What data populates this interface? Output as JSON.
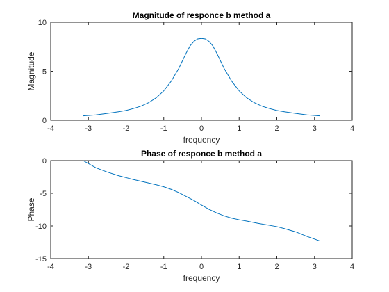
{
  "chart_data": [
    {
      "type": "line",
      "title": "Magnitude of responce b method a",
      "xlabel": "frequency",
      "ylabel": "Magnitude",
      "xlim": [
        -4,
        4
      ],
      "ylim": [
        0,
        10
      ],
      "xticks": [
        "-4",
        "-3",
        "-2",
        "-1",
        "0",
        "1",
        "2",
        "3",
        "4"
      ],
      "yticks": [
        "0",
        "5",
        "10"
      ],
      "color": "#0072BD",
      "grid": false,
      "x": [
        -3.14,
        -2.8,
        -2.5,
        -2.2,
        -2.0,
        -1.8,
        -1.6,
        -1.4,
        -1.2,
        -1.0,
        -0.8,
        -0.6,
        -0.5,
        -0.4,
        -0.3,
        -0.2,
        -0.1,
        0.0,
        0.1,
        0.2,
        0.3,
        0.4,
        0.5,
        0.6,
        0.8,
        1.0,
        1.2,
        1.4,
        1.6,
        1.8,
        2.0,
        2.2,
        2.5,
        2.8,
        3.14
      ],
      "y": [
        0.45,
        0.55,
        0.7,
        0.87,
        1.0,
        1.2,
        1.45,
        1.8,
        2.3,
        3.0,
        4.0,
        5.3,
        6.1,
        6.9,
        7.6,
        8.05,
        8.3,
        8.35,
        8.3,
        8.05,
        7.6,
        6.9,
        6.1,
        5.3,
        4.0,
        3.0,
        2.3,
        1.8,
        1.45,
        1.2,
        1.0,
        0.87,
        0.7,
        0.55,
        0.45
      ]
    },
    {
      "type": "line",
      "title": "Phase of responce b method a",
      "xlabel": "frequency",
      "ylabel": "Phase",
      "xlim": [
        -4,
        4
      ],
      "ylim": [
        -15,
        0
      ],
      "xticks": [
        "-4",
        "-3",
        "-2",
        "-1",
        "0",
        "1",
        "2",
        "3",
        "4"
      ],
      "yticks": [
        "-15",
        "-10",
        "-5",
        "0"
      ],
      "color": "#0072BD",
      "grid": false,
      "x": [
        -3.14,
        -3.0,
        -2.8,
        -2.5,
        -2.2,
        -2.0,
        -1.8,
        -1.5,
        -1.2,
        -1.0,
        -0.8,
        -0.6,
        -0.4,
        -0.2,
        0.0,
        0.2,
        0.4,
        0.6,
        0.8,
        1.0,
        1.2,
        1.5,
        1.8,
        2.0,
        2.2,
        2.5,
        2.8,
        3.0,
        3.14
      ],
      "y": [
        0.0,
        -0.45,
        -1.1,
        -1.75,
        -2.3,
        -2.6,
        -2.9,
        -3.3,
        -3.7,
        -4.0,
        -4.4,
        -4.9,
        -5.5,
        -6.1,
        -6.8,
        -7.45,
        -8.0,
        -8.45,
        -8.8,
        -9.05,
        -9.25,
        -9.6,
        -9.9,
        -10.1,
        -10.4,
        -10.9,
        -11.6,
        -12.0,
        -12.3
      ]
    }
  ]
}
